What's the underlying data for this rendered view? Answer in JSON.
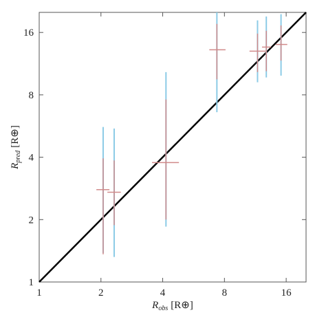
{
  "chart_data": {
    "type": "scatter",
    "xlabel": {
      "symbol": "R",
      "subscript": "obs",
      "unit": "[R⊕]"
    },
    "ylabel": {
      "symbol": "R",
      "subscript": "pred",
      "unit": "[R⊕]"
    },
    "x_log": true,
    "y_log": true,
    "xlim": [
      1,
      20
    ],
    "ylim": [
      1,
      20
    ],
    "xticks": [
      1,
      2,
      4,
      8,
      16
    ],
    "yticks": [
      1,
      2,
      4,
      8,
      16
    ],
    "identity_line": true,
    "identity_color": "#000000",
    "color": "#d08a8a",
    "wide_color": "#8ccbe6",
    "x": [
      2.05,
      2.32,
      4.15,
      7.35,
      11.6,
      12.8,
      15.1
    ],
    "x_low": [
      1.9,
      2.15,
      3.55,
      6.75,
      10.6,
      12.2,
      14.2
    ],
    "x_high": [
      2.2,
      2.5,
      4.8,
      8.1,
      12.7,
      13.5,
      16.2
    ],
    "y": [
      2.79,
      2.71,
      3.77,
      13.2,
      13.0,
      13.6,
      14.0
    ],
    "y_low": [
      1.36,
      1.88,
      2.0,
      9.5,
      10.3,
      10.4,
      11.7
    ],
    "y_high": [
      3.95,
      3.86,
      7.6,
      17.6,
      15.8,
      16.3,
      17.3
    ],
    "y_wide_low": [
      1.38,
      1.32,
      1.85,
      6.6,
      9.2,
      9.7,
      9.9
    ],
    "y_wide_high": [
      5.6,
      5.5,
      10.3,
      20,
      18.3,
      19.1,
      19.6
    ]
  }
}
